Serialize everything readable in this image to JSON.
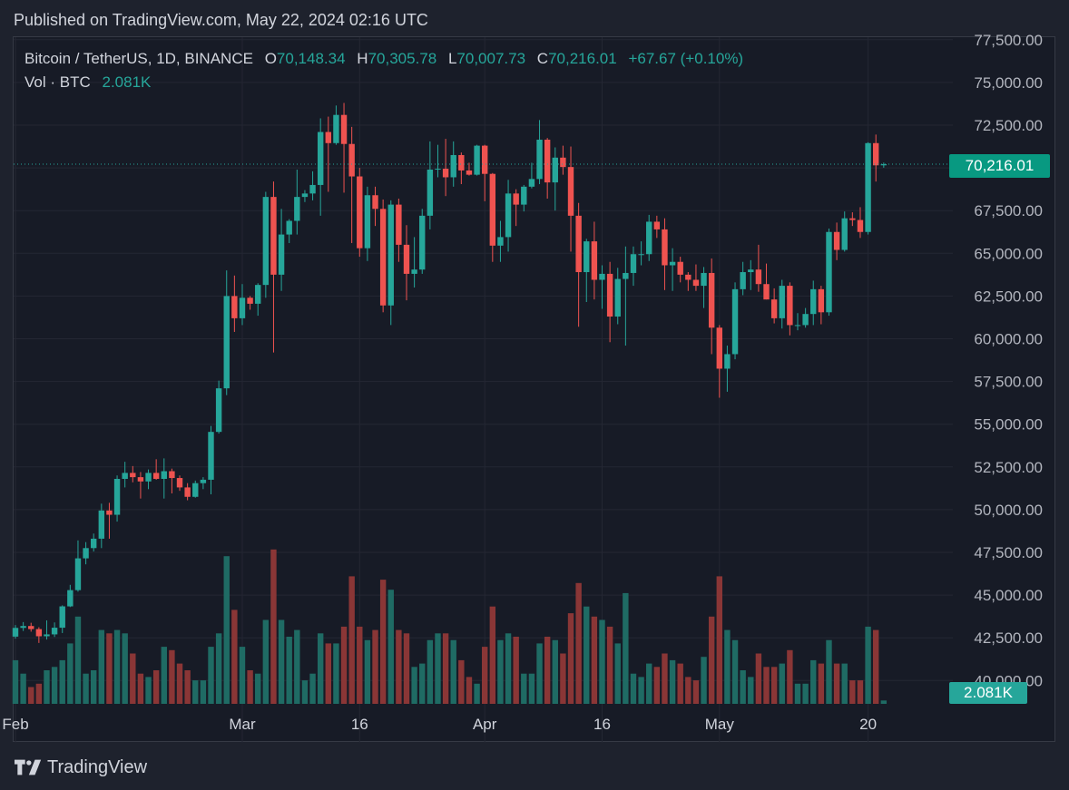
{
  "header": {
    "published": "Published on TradingView.com, May 22, 2024 02:16 UTC"
  },
  "legend": {
    "symbol": "Bitcoin / TetherUS, 1D, BINANCE",
    "open_label": "O",
    "open": "70,148.34",
    "high_label": "H",
    "high": "70,305.78",
    "low_label": "L",
    "low": "70,007.73",
    "close_label": "C",
    "close": "70,216.01",
    "change": "+67.67 (+0.10%)",
    "vol_label": "Vol · BTC",
    "vol_value": "2.081K"
  },
  "price_tag": "70,216.01",
  "vol_tag": "2.081K",
  "footer": {
    "brand": "TradingView"
  },
  "colors": {
    "up": "#26a69a",
    "down": "#ef5350",
    "vol_up": "#1f6b64",
    "vol_down": "#8a3636",
    "background": "#171b26",
    "grid": "#242733"
  },
  "icons": {
    "logo": "tradingview-logo-icon"
  },
  "chart_data": {
    "type": "candlestick",
    "symbol": "Bitcoin / TetherUS",
    "interval": "1D",
    "exchange": "BINANCE",
    "ylim": [
      38600,
      77500
    ],
    "yticks": [
      40000,
      42500,
      45000,
      47500,
      50000,
      52500,
      55000,
      57500,
      60000,
      62500,
      65000,
      67500,
      70000,
      72500,
      75000,
      77500
    ],
    "ytick_labels": [
      "40,000.00",
      "42,500.00",
      "45,000.00",
      "47,500.00",
      "50,000.00",
      "52,500.00",
      "55,000.00",
      "57,500.00",
      "60,000.00",
      "62,500.00",
      "65,000.00",
      "67,500.00",
      "70,000.00",
      "72,500.00",
      "75,000.00",
      "77,500.00"
    ],
    "xticks": [
      {
        "label": "Feb",
        "index": 0
      },
      {
        "label": "Mar",
        "index": 29
      },
      {
        "label": "16",
        "index": 44
      },
      {
        "label": "Apr",
        "index": 60
      },
      {
        "label": "16",
        "index": 75
      },
      {
        "label": "May",
        "index": 90
      },
      {
        "label": "20",
        "index": 109
      }
    ],
    "last_price": 70216.01,
    "grid": true,
    "series": [
      {
        "date": "2024-02-01",
        "o": 42570,
        "h": 43250,
        "l": 42450,
        "c": 43080,
        "v": 13
      },
      {
        "date": "2024-02-02",
        "o": 43080,
        "h": 43420,
        "l": 42900,
        "c": 43190,
        "v": 9
      },
      {
        "date": "2024-02-03",
        "o": 43190,
        "h": 43380,
        "l": 42860,
        "c": 43010,
        "v": 5
      },
      {
        "date": "2024-02-04",
        "o": 43010,
        "h": 43120,
        "l": 42200,
        "c": 42590,
        "v": 6
      },
      {
        "date": "2024-02-05",
        "o": 42590,
        "h": 43520,
        "l": 42400,
        "c": 42700,
        "v": 10
      },
      {
        "date": "2024-02-06",
        "o": 42700,
        "h": 43400,
        "l": 42550,
        "c": 43090,
        "v": 11
      },
      {
        "date": "2024-02-07",
        "o": 43090,
        "h": 44400,
        "l": 42780,
        "c": 44340,
        "v": 13
      },
      {
        "date": "2024-02-08",
        "o": 44340,
        "h": 45600,
        "l": 44300,
        "c": 45290,
        "v": 18
      },
      {
        "date": "2024-02-09",
        "o": 45290,
        "h": 48200,
        "l": 45200,
        "c": 47150,
        "v": 26
      },
      {
        "date": "2024-02-10",
        "o": 47150,
        "h": 48100,
        "l": 46800,
        "c": 47750,
        "v": 9
      },
      {
        "date": "2024-02-11",
        "o": 47750,
        "h": 48600,
        "l": 47550,
        "c": 48300,
        "v": 10
      },
      {
        "date": "2024-02-12",
        "o": 48300,
        "h": 50350,
        "l": 47750,
        "c": 49950,
        "v": 22
      },
      {
        "date": "2024-02-13",
        "o": 49950,
        "h": 50400,
        "l": 48300,
        "c": 49700,
        "v": 21
      },
      {
        "date": "2024-02-14",
        "o": 49700,
        "h": 52000,
        "l": 49300,
        "c": 51800,
        "v": 22
      },
      {
        "date": "2024-02-15",
        "o": 51800,
        "h": 52800,
        "l": 51300,
        "c": 52150,
        "v": 21
      },
      {
        "date": "2024-02-16",
        "o": 52150,
        "h": 52550,
        "l": 51600,
        "c": 51900,
        "v": 15
      },
      {
        "date": "2024-02-17",
        "o": 51900,
        "h": 52200,
        "l": 50650,
        "c": 51650,
        "v": 9
      },
      {
        "date": "2024-02-18",
        "o": 51650,
        "h": 52350,
        "l": 51200,
        "c": 52150,
        "v": 8
      },
      {
        "date": "2024-02-19",
        "o": 52150,
        "h": 52950,
        "l": 51750,
        "c": 51800,
        "v": 10
      },
      {
        "date": "2024-02-20",
        "o": 51800,
        "h": 53000,
        "l": 50650,
        "c": 52250,
        "v": 17
      },
      {
        "date": "2024-02-21",
        "o": 52250,
        "h": 52400,
        "l": 50950,
        "c": 51850,
        "v": 16
      },
      {
        "date": "2024-02-22",
        "o": 51850,
        "h": 52000,
        "l": 51100,
        "c": 51300,
        "v": 12
      },
      {
        "date": "2024-02-23",
        "o": 51300,
        "h": 51550,
        "l": 50550,
        "c": 50750,
        "v": 10
      },
      {
        "date": "2024-02-24",
        "o": 50750,
        "h": 51700,
        "l": 50700,
        "c": 51550,
        "v": 7
      },
      {
        "date": "2024-02-25",
        "o": 51550,
        "h": 51900,
        "l": 51200,
        "c": 51750,
        "v": 7
      },
      {
        "date": "2024-02-26",
        "o": 51750,
        "h": 54900,
        "l": 50900,
        "c": 54550,
        "v": 17
      },
      {
        "date": "2024-02-27",
        "o": 54550,
        "h": 57550,
        "l": 54450,
        "c": 57100,
        "v": 21
      },
      {
        "date": "2024-02-28",
        "o": 57100,
        "h": 64000,
        "l": 56700,
        "c": 62500,
        "v": 44
      },
      {
        "date": "2024-02-29",
        "o": 62500,
        "h": 63700,
        "l": 60400,
        "c": 61200,
        "v": 28
      },
      {
        "date": "2024-03-01",
        "o": 61200,
        "h": 63200,
        "l": 60800,
        "c": 62400,
        "v": 17
      },
      {
        "date": "2024-03-02",
        "o": 62400,
        "h": 62500,
        "l": 61700,
        "c": 62050,
        "v": 10
      },
      {
        "date": "2024-03-03",
        "o": 62050,
        "h": 63250,
        "l": 61350,
        "c": 63150,
        "v": 9
      },
      {
        "date": "2024-03-04",
        "o": 63150,
        "h": 68600,
        "l": 62400,
        "c": 68300,
        "v": 25
      },
      {
        "date": "2024-03-05",
        "o": 68300,
        "h": 69200,
        "l": 59200,
        "c": 63750,
        "v": 46
      },
      {
        "date": "2024-03-06",
        "o": 63750,
        "h": 67600,
        "l": 62800,
        "c": 66100,
        "v": 25
      },
      {
        "date": "2024-03-07",
        "o": 66100,
        "h": 67000,
        "l": 65600,
        "c": 66900,
        "v": 20
      },
      {
        "date": "2024-03-08",
        "o": 66900,
        "h": 69900,
        "l": 66100,
        "c": 68300,
        "v": 22
      },
      {
        "date": "2024-03-09",
        "o": 68300,
        "h": 68700,
        "l": 68000,
        "c": 68500,
        "v": 7
      },
      {
        "date": "2024-03-10",
        "o": 68500,
        "h": 69800,
        "l": 68100,
        "c": 69000,
        "v": 9
      },
      {
        "date": "2024-03-11",
        "o": 69000,
        "h": 72900,
        "l": 67200,
        "c": 72100,
        "v": 21
      },
      {
        "date": "2024-03-12",
        "o": 72100,
        "h": 73000,
        "l": 68600,
        "c": 71450,
        "v": 18
      },
      {
        "date": "2024-03-13",
        "o": 71450,
        "h": 73650,
        "l": 71350,
        "c": 73100,
        "v": 18
      },
      {
        "date": "2024-03-14",
        "o": 73100,
        "h": 73800,
        "l": 68550,
        "c": 71400,
        "v": 23
      },
      {
        "date": "2024-03-15",
        "o": 71400,
        "h": 72400,
        "l": 65600,
        "c": 69500,
        "v": 38
      },
      {
        "date": "2024-03-16",
        "o": 69500,
        "h": 70000,
        "l": 64800,
        "c": 65300,
        "v": 23
      },
      {
        "date": "2024-03-17",
        "o": 65300,
        "h": 68900,
        "l": 64550,
        "c": 68400,
        "v": 19
      },
      {
        "date": "2024-03-18",
        "o": 68400,
        "h": 68900,
        "l": 66600,
        "c": 67600,
        "v": 22
      },
      {
        "date": "2024-03-19",
        "o": 67600,
        "h": 68150,
        "l": 61550,
        "c": 61950,
        "v": 37
      },
      {
        "date": "2024-03-20",
        "o": 61950,
        "h": 68100,
        "l": 60800,
        "c": 67850,
        "v": 34
      },
      {
        "date": "2024-03-21",
        "o": 67850,
        "h": 68200,
        "l": 64500,
        "c": 65500,
        "v": 22
      },
      {
        "date": "2024-03-22",
        "o": 65500,
        "h": 66650,
        "l": 62250,
        "c": 63800,
        "v": 21
      },
      {
        "date": "2024-03-23",
        "o": 63800,
        "h": 65950,
        "l": 63000,
        "c": 64050,
        "v": 11
      },
      {
        "date": "2024-03-24",
        "o": 64050,
        "h": 67600,
        "l": 63800,
        "c": 67200,
        "v": 12
      },
      {
        "date": "2024-03-25",
        "o": 67200,
        "h": 71550,
        "l": 66400,
        "c": 69900,
        "v": 19
      },
      {
        "date": "2024-03-26",
        "o": 69900,
        "h": 71350,
        "l": 69450,
        "c": 69950,
        "v": 21
      },
      {
        "date": "2024-03-27",
        "o": 69950,
        "h": 71700,
        "l": 68350,
        "c": 69450,
        "v": 21
      },
      {
        "date": "2024-03-28",
        "o": 69450,
        "h": 71550,
        "l": 68900,
        "c": 70750,
        "v": 19
      },
      {
        "date": "2024-03-29",
        "o": 70750,
        "h": 70900,
        "l": 69050,
        "c": 69850,
        "v": 13
      },
      {
        "date": "2024-03-30",
        "o": 69850,
        "h": 70300,
        "l": 69550,
        "c": 69600,
        "v": 8
      },
      {
        "date": "2024-03-31",
        "o": 69600,
        "h": 71350,
        "l": 69550,
        "c": 71300,
        "v": 6
      },
      {
        "date": "2024-04-01",
        "o": 71300,
        "h": 71350,
        "l": 68050,
        "c": 69650,
        "v": 17
      },
      {
        "date": "2024-04-02",
        "o": 69650,
        "h": 69700,
        "l": 64500,
        "c": 65450,
        "v": 29
      },
      {
        "date": "2024-04-03",
        "o": 65450,
        "h": 66900,
        "l": 64500,
        "c": 65950,
        "v": 19
      },
      {
        "date": "2024-04-04",
        "o": 65950,
        "h": 69300,
        "l": 65100,
        "c": 68500,
        "v": 21
      },
      {
        "date": "2024-04-05",
        "o": 68500,
        "h": 68750,
        "l": 66600,
        "c": 67850,
        "v": 20
      },
      {
        "date": "2024-04-06",
        "o": 67850,
        "h": 69000,
        "l": 67450,
        "c": 68900,
        "v": 9
      },
      {
        "date": "2024-04-07",
        "o": 68900,
        "h": 70300,
        "l": 68800,
        "c": 69350,
        "v": 9
      },
      {
        "date": "2024-04-08",
        "o": 69350,
        "h": 72800,
        "l": 69050,
        "c": 71650,
        "v": 18
      },
      {
        "date": "2024-04-09",
        "o": 71650,
        "h": 71750,
        "l": 68200,
        "c": 69150,
        "v": 20
      },
      {
        "date": "2024-04-10",
        "o": 69150,
        "h": 71200,
        "l": 67500,
        "c": 70600,
        "v": 19
      },
      {
        "date": "2024-04-11",
        "o": 70600,
        "h": 71300,
        "l": 69600,
        "c": 70050,
        "v": 15
      },
      {
        "date": "2024-04-12",
        "o": 70050,
        "h": 71250,
        "l": 65100,
        "c": 67200,
        "v": 27
      },
      {
        "date": "2024-04-13",
        "o": 67200,
        "h": 67950,
        "l": 60700,
        "c": 63900,
        "v": 36
      },
      {
        "date": "2024-04-14",
        "o": 63900,
        "h": 65850,
        "l": 62150,
        "c": 65700,
        "v": 29
      },
      {
        "date": "2024-04-15",
        "o": 65700,
        "h": 66850,
        "l": 62300,
        "c": 63450,
        "v": 26
      },
      {
        "date": "2024-04-16",
        "o": 63450,
        "h": 64300,
        "l": 61750,
        "c": 63800,
        "v": 25
      },
      {
        "date": "2024-04-17",
        "o": 63800,
        "h": 64500,
        "l": 59800,
        "c": 61300,
        "v": 23
      },
      {
        "date": "2024-04-18",
        "o": 61300,
        "h": 64150,
        "l": 60850,
        "c": 63500,
        "v": 18
      },
      {
        "date": "2024-04-19",
        "o": 63500,
        "h": 65400,
        "l": 59600,
        "c": 63850,
        "v": 33
      },
      {
        "date": "2024-04-20",
        "o": 63850,
        "h": 65400,
        "l": 63100,
        "c": 64950,
        "v": 9
      },
      {
        "date": "2024-04-21",
        "o": 64950,
        "h": 65700,
        "l": 64300,
        "c": 64950,
        "v": 8
      },
      {
        "date": "2024-04-22",
        "o": 64950,
        "h": 67250,
        "l": 64550,
        "c": 66850,
        "v": 12
      },
      {
        "date": "2024-04-23",
        "o": 66850,
        "h": 67200,
        "l": 65900,
        "c": 66400,
        "v": 11
      },
      {
        "date": "2024-04-24",
        "o": 66400,
        "h": 67050,
        "l": 62850,
        "c": 64300,
        "v": 15
      },
      {
        "date": "2024-04-25",
        "o": 64300,
        "h": 65300,
        "l": 62800,
        "c": 64500,
        "v": 13
      },
      {
        "date": "2024-04-26",
        "o": 64500,
        "h": 64800,
        "l": 63300,
        "c": 63750,
        "v": 12
      },
      {
        "date": "2024-04-27",
        "o": 63750,
        "h": 63900,
        "l": 62800,
        "c": 63450,
        "v": 8
      },
      {
        "date": "2024-04-28",
        "o": 63450,
        "h": 64350,
        "l": 62800,
        "c": 63100,
        "v": 7
      },
      {
        "date": "2024-04-29",
        "o": 63100,
        "h": 64200,
        "l": 61800,
        "c": 63850,
        "v": 14
      },
      {
        "date": "2024-04-30",
        "o": 63850,
        "h": 64700,
        "l": 59100,
        "c": 60650,
        "v": 26
      },
      {
        "date": "2024-05-01",
        "o": 60650,
        "h": 60800,
        "l": 56550,
        "c": 58250,
        "v": 38
      },
      {
        "date": "2024-05-02",
        "o": 58250,
        "h": 59600,
        "l": 56900,
        "c": 59100,
        "v": 22
      },
      {
        "date": "2024-05-03",
        "o": 59100,
        "h": 63300,
        "l": 58800,
        "c": 62900,
        "v": 19
      },
      {
        "date": "2024-05-04",
        "o": 62900,
        "h": 64500,
        "l": 62550,
        "c": 63900,
        "v": 10
      },
      {
        "date": "2024-05-05",
        "o": 63900,
        "h": 64600,
        "l": 62850,
        "c": 64050,
        "v": 8
      },
      {
        "date": "2024-05-06",
        "o": 64050,
        "h": 65500,
        "l": 62750,
        "c": 63200,
        "v": 15
      },
      {
        "date": "2024-05-07",
        "o": 63200,
        "h": 64400,
        "l": 62300,
        "c": 62300,
        "v": 11
      },
      {
        "date": "2024-05-08",
        "o": 62300,
        "h": 62950,
        "l": 60900,
        "c": 61200,
        "v": 11
      },
      {
        "date": "2024-05-09",
        "o": 61200,
        "h": 63450,
        "l": 60600,
        "c": 63100,
        "v": 12
      },
      {
        "date": "2024-05-10",
        "o": 63100,
        "h": 63300,
        "l": 60200,
        "c": 60800,
        "v": 16
      },
      {
        "date": "2024-05-11",
        "o": 60800,
        "h": 61500,
        "l": 60500,
        "c": 60800,
        "v": 6
      },
      {
        "date": "2024-05-12",
        "o": 60800,
        "h": 61800,
        "l": 60650,
        "c": 61450,
        "v": 6
      },
      {
        "date": "2024-05-13",
        "o": 61450,
        "h": 63400,
        "l": 60800,
        "c": 62900,
        "v": 13
      },
      {
        "date": "2024-05-14",
        "o": 62900,
        "h": 63100,
        "l": 60850,
        "c": 61550,
        "v": 12
      },
      {
        "date": "2024-05-15",
        "o": 61550,
        "h": 66450,
        "l": 61350,
        "c": 66250,
        "v": 19
      },
      {
        "date": "2024-05-16",
        "o": 66250,
        "h": 66800,
        "l": 64600,
        "c": 65200,
        "v": 12
      },
      {
        "date": "2024-05-17",
        "o": 65200,
        "h": 67450,
        "l": 65100,
        "c": 67050,
        "v": 12
      },
      {
        "date": "2024-05-18",
        "o": 67050,
        "h": 67400,
        "l": 66600,
        "c": 66950,
        "v": 7
      },
      {
        "date": "2024-05-19",
        "o": 66950,
        "h": 67700,
        "l": 65900,
        "c": 66250,
        "v": 7
      },
      {
        "date": "2024-05-20",
        "o": 66250,
        "h": 71500,
        "l": 66100,
        "c": 71450,
        "v": 23
      },
      {
        "date": "2024-05-21",
        "o": 71450,
        "h": 71950,
        "l": 69200,
        "c": 70150,
        "v": 22
      },
      {
        "date": "2024-05-22",
        "o": 70150,
        "h": 70310,
        "l": 70010,
        "c": 70216,
        "v": 1
      }
    ]
  }
}
